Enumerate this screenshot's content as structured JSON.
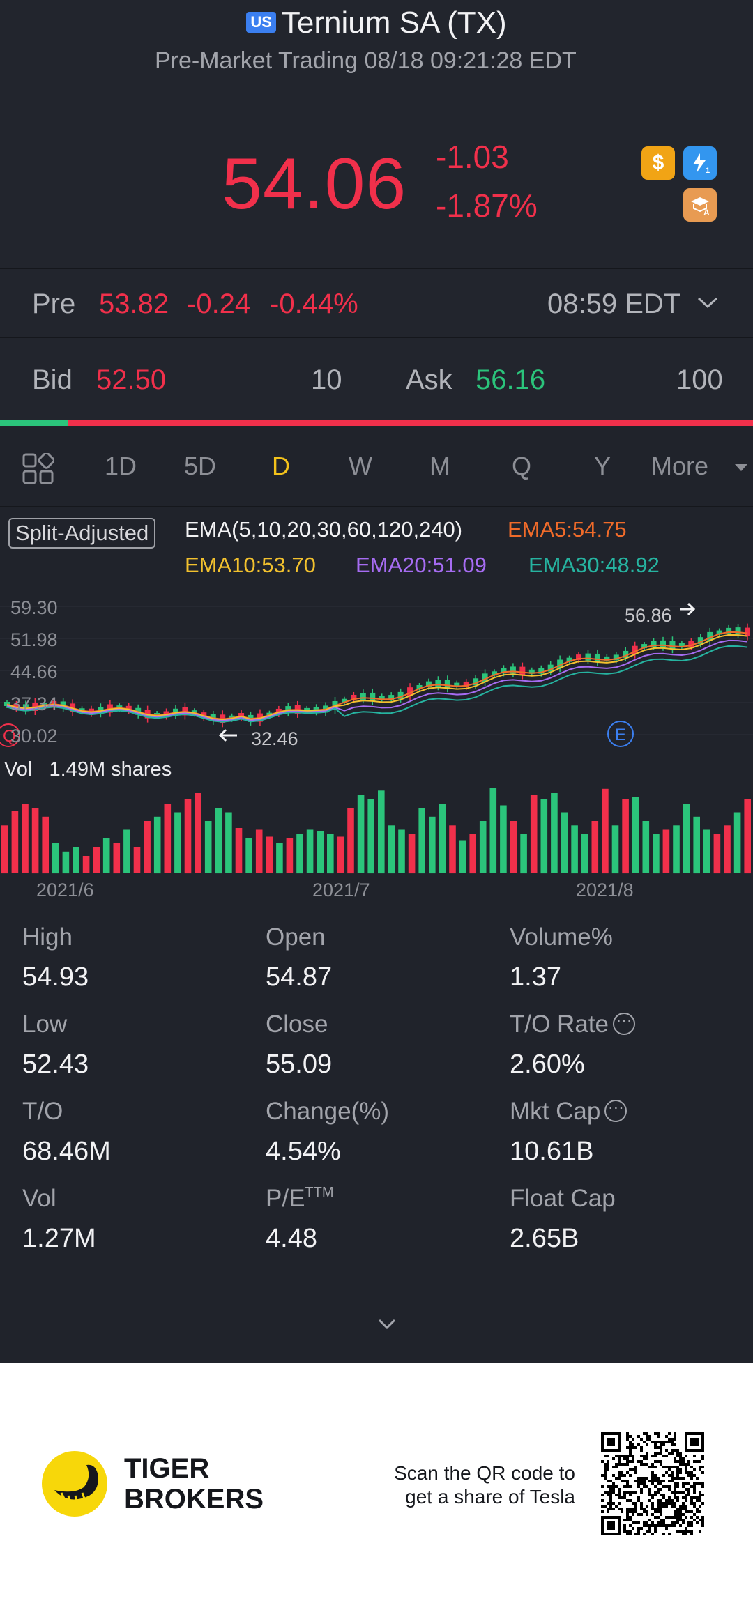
{
  "header": {
    "market_badge": "US",
    "title": "Ternium SA (TX)",
    "subtitle": "Pre-Market Trading 08/18 09:21:28 EDT",
    "price": "54.06",
    "change": "-1.03",
    "change_pct": "-1.87%",
    "icons": [
      "dollar-badge-icon",
      "lightning-level1-icon",
      "education-a-icon"
    ]
  },
  "pre": {
    "label": "Pre",
    "price": "53.82",
    "change": "-0.24",
    "change_pct": "-0.44%",
    "time": "08:59 EDT"
  },
  "quote": {
    "bid_label": "Bid",
    "bid_price": "52.50",
    "bid_size": "10",
    "ask_label": "Ask",
    "ask_price": "56.16",
    "ask_size": "100",
    "bid_share": 0.09
  },
  "tabs": {
    "items": [
      "1D",
      "5D",
      "D",
      "W",
      "M",
      "Q",
      "Y",
      "More"
    ],
    "active": "D"
  },
  "indicators": {
    "split_adjusted": "Split-Adjusted",
    "ema_title": "EMA(5,10,20,30,60,120,240)",
    "ema5": "EMA5:54.75",
    "ema10": "EMA10:53.70",
    "ema20": "EMA20:51.09",
    "ema30": "EMA30:48.92"
  },
  "chart": {
    "y_ticks": [
      "59.30",
      "51.98",
      "44.66",
      "37.34",
      "30.02"
    ],
    "high_marker": "56.86",
    "low_marker": "32.46",
    "vol_label": "Vol",
    "vol_value": "1.49M shares",
    "x_ticks": [
      "2021/6",
      "2021/7",
      "2021/8"
    ],
    "event_markers": [
      "Q",
      "E"
    ]
  },
  "chart_data": {
    "type": "bar",
    "title": "",
    "xlabel": "",
    "ylabel": "",
    "x_ticks": [
      "2021/6",
      "2021/7",
      "2021/8"
    ],
    "volume_relative": [
      0.55,
      0.72,
      0.8,
      0.75,
      0.65,
      0.35,
      0.25,
      0.3,
      0.2,
      0.3,
      0.4,
      0.35,
      0.5,
      0.3,
      0.6,
      0.65,
      0.8,
      0.7,
      0.85,
      0.92,
      0.6,
      0.75,
      0.7,
      0.52,
      0.4,
      0.5,
      0.42,
      0.35,
      0.4,
      0.45,
      0.5,
      0.48,
      0.45,
      0.42,
      0.75,
      0.9,
      0.85,
      0.95,
      0.55,
      0.5,
      0.45,
      0.75,
      0.65,
      0.8,
      0.55,
      0.38,
      0.45,
      0.6,
      0.98,
      0.78,
      0.6,
      0.45,
      0.9,
      0.85,
      0.92,
      0.7,
      0.55,
      0.45,
      0.6,
      0.97,
      0.55,
      0.85,
      0.88,
      0.6,
      0.45,
      0.5,
      0.55,
      0.8,
      0.65,
      0.5,
      0.45,
      0.55,
      0.7,
      0.85
    ],
    "volume_up": [
      false,
      false,
      false,
      false,
      false,
      true,
      true,
      true,
      false,
      false,
      true,
      false,
      true,
      false,
      false,
      true,
      false,
      true,
      false,
      false,
      true,
      true,
      true,
      false,
      true,
      false,
      false,
      true,
      false,
      true,
      true,
      true,
      true,
      false,
      false,
      true,
      true,
      true,
      true,
      true,
      false,
      true,
      true,
      true,
      false,
      true,
      false,
      true,
      true,
      true,
      false,
      true,
      false,
      true,
      true,
      true,
      true,
      true,
      false,
      false,
      true,
      false,
      true,
      true,
      true,
      false,
      true,
      true,
      true,
      true,
      false,
      false,
      true,
      false
    ],
    "price_ylim": [
      30.02,
      59.3
    ],
    "ema_lines": [
      "EMA5",
      "EMA10",
      "EMA20",
      "EMA30"
    ]
  },
  "stats": [
    {
      "label": "High",
      "value": "54.93"
    },
    {
      "label": "Open",
      "value": "54.87"
    },
    {
      "label": "Volume%",
      "value": "1.37"
    },
    {
      "label": "Low",
      "value": "52.43"
    },
    {
      "label": "Close",
      "value": "55.09"
    },
    {
      "label": "T/O Rate",
      "value": "2.60%"
    },
    {
      "label": "T/O",
      "value": "68.46M"
    },
    {
      "label": "Change(%)",
      "value": "4.54%"
    },
    {
      "label": "Mkt Cap",
      "value": "10.61B"
    },
    {
      "label": "Vol",
      "value": "1.27M"
    },
    {
      "label": "P/E",
      "sup": "TTM",
      "value": "4.48"
    },
    {
      "label": "Float Cap",
      "value": "2.65B"
    }
  ],
  "footer": {
    "brand_line1": "TIGER",
    "brand_line2": "BROKERS",
    "scan_line1": "Scan the QR code to",
    "scan_line2": "get a share of Tesla"
  },
  "colors": {
    "up": "#2bc47b",
    "down": "#f1304b",
    "active_tab": "#f3c21b",
    "ema5": "#f06b2a",
    "ema10": "#f2c12e",
    "ema20": "#a66cf2",
    "ema30": "#26b3a0",
    "background": "#20232b"
  }
}
